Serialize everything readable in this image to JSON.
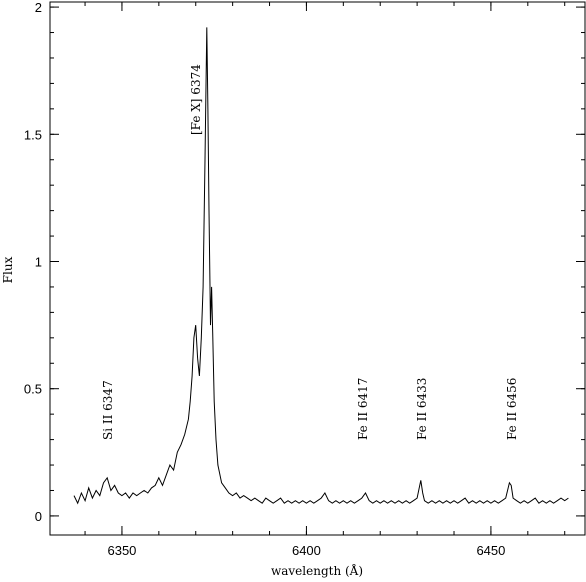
{
  "chart_data": {
    "type": "line",
    "xlabel": "wavelength (Å)",
    "ylabel": "Flux",
    "xlim": [
      6330.5,
      6475.5
    ],
    "ylim": [
      -0.075,
      2.02
    ],
    "xticks": [
      6350,
      6400,
      6450
    ],
    "yticks": [
      0,
      0.5,
      1,
      1.5,
      2
    ],
    "annotations": [
      "Si II 6347",
      "[Fe X] 6374",
      "Fe II 6417",
      "Fe II 6433",
      "Fe II 6456"
    ],
    "series": [
      {
        "color": "#000000",
        "x": [
          6337,
          6338,
          6339,
          6340,
          6341,
          6342,
          6343,
          6344,
          6345,
          6346,
          6347,
          6348,
          6349,
          6350,
          6351,
          6352,
          6353,
          6354,
          6355,
          6356,
          6357,
          6358,
          6359,
          6360,
          6361,
          6362,
          6363,
          6364,
          6365,
          6366,
          6367,
          6368,
          6368.5,
          6369,
          6369.5,
          6370,
          6370.5,
          6371,
          6371.5,
          6372,
          6372.5,
          6373,
          6373.3,
          6373.6,
          6374,
          6374.3,
          6374.6,
          6375,
          6375.5,
          6376,
          6377,
          6378,
          6379,
          6380,
          6381,
          6382,
          6383,
          6384,
          6385,
          6386,
          6387,
          6388,
          6389,
          6390,
          6391,
          6392,
          6393,
          6394,
          6395,
          6396,
          6397,
          6398,
          6399,
          6400,
          6401,
          6402,
          6403,
          6404,
          6405,
          6406,
          6407,
          6408,
          6409,
          6410,
          6411,
          6412,
          6413,
          6414,
          6415,
          6416,
          6417,
          6418,
          6419,
          6420,
          6421,
          6422,
          6423,
          6424,
          6425,
          6426,
          6427,
          6428,
          6429,
          6430,
          6431,
          6431.5,
          6432,
          6433,
          6434,
          6435,
          6436,
          6437,
          6438,
          6439,
          6440,
          6441,
          6442,
          6443,
          6444,
          6445,
          6446,
          6447,
          6448,
          6449,
          6450,
          6451,
          6452,
          6453,
          6454,
          6455,
          6455.5,
          6456,
          6457,
          6458,
          6459,
          6460,
          6461,
          6462,
          6463,
          6464,
          6465,
          6466,
          6467,
          6468,
          6469,
          6470,
          6471
        ],
        "values": [
          0.08,
          0.05,
          0.09,
          0.06,
          0.11,
          0.07,
          0.1,
          0.08,
          0.13,
          0.15,
          0.1,
          0.12,
          0.09,
          0.08,
          0.09,
          0.07,
          0.09,
          0.08,
          0.09,
          0.1,
          0.09,
          0.11,
          0.12,
          0.15,
          0.12,
          0.16,
          0.2,
          0.18,
          0.25,
          0.28,
          0.32,
          0.38,
          0.45,
          0.55,
          0.7,
          0.75,
          0.62,
          0.55,
          0.7,
          0.9,
          1.4,
          1.92,
          1.6,
          1.2,
          0.75,
          0.9,
          0.72,
          0.45,
          0.3,
          0.2,
          0.13,
          0.11,
          0.09,
          0.08,
          0.09,
          0.07,
          0.08,
          0.07,
          0.06,
          0.07,
          0.06,
          0.05,
          0.07,
          0.06,
          0.05,
          0.06,
          0.07,
          0.05,
          0.06,
          0.05,
          0.06,
          0.05,
          0.06,
          0.05,
          0.06,
          0.05,
          0.06,
          0.07,
          0.09,
          0.06,
          0.05,
          0.06,
          0.05,
          0.06,
          0.05,
          0.06,
          0.05,
          0.06,
          0.07,
          0.09,
          0.06,
          0.05,
          0.06,
          0.05,
          0.06,
          0.05,
          0.06,
          0.05,
          0.06,
          0.05,
          0.06,
          0.05,
          0.06,
          0.07,
          0.14,
          0.09,
          0.06,
          0.05,
          0.06,
          0.05,
          0.06,
          0.05,
          0.06,
          0.05,
          0.06,
          0.05,
          0.06,
          0.07,
          0.05,
          0.06,
          0.05,
          0.06,
          0.05,
          0.06,
          0.05,
          0.06,
          0.05,
          0.06,
          0.07,
          0.13,
          0.12,
          0.07,
          0.06,
          0.05,
          0.06,
          0.05,
          0.06,
          0.07,
          0.05,
          0.06,
          0.05,
          0.06,
          0.05,
          0.06,
          0.07,
          0.06,
          0.07
        ]
      }
    ]
  }
}
